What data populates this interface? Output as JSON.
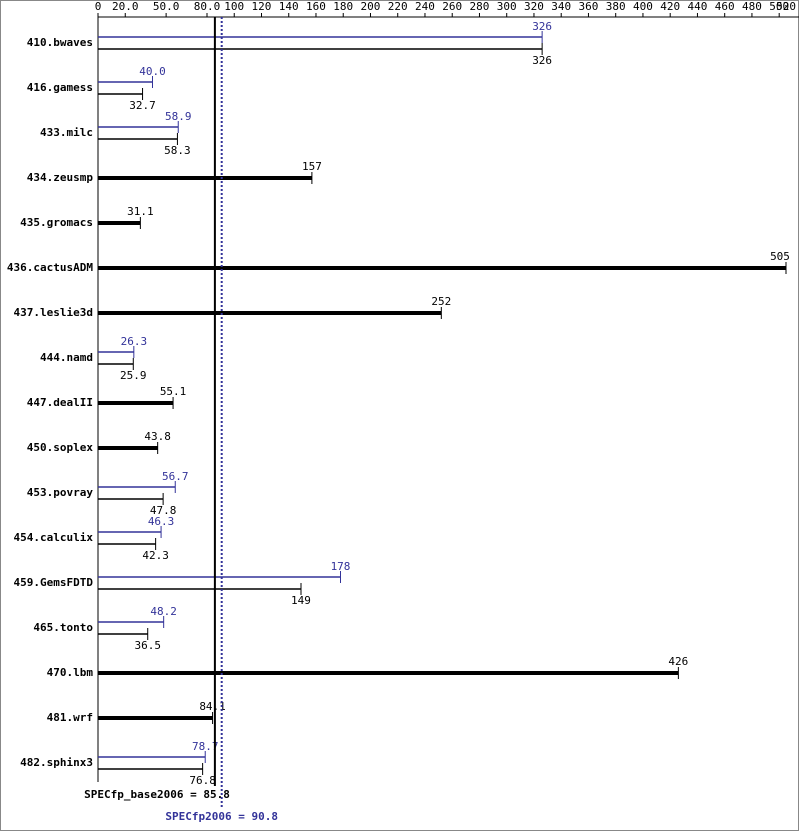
{
  "chart_data": {
    "type": "bar",
    "categories": [
      "410.bwaves",
      "416.gamess",
      "433.milc",
      "434.zeusmp",
      "435.gromacs",
      "436.cactusADM",
      "437.leslie3d",
      "444.namd",
      "447.dealII",
      "450.soplex",
      "453.povray",
      "454.calculix",
      "459.GemsFDTD",
      "465.tonto",
      "470.lbm",
      "481.wrf",
      "482.sphinx3"
    ],
    "series": [
      {
        "name": "peak",
        "color": "#333399",
        "values": [
          326,
          40.0,
          58.9,
          null,
          null,
          null,
          null,
          26.3,
          null,
          null,
          56.7,
          46.3,
          178,
          48.2,
          null,
          null,
          78.7
        ],
        "value_labels": [
          "326",
          "40.0",
          "58.9",
          null,
          null,
          null,
          null,
          "26.3",
          null,
          null,
          "56.7",
          "46.3",
          "178",
          "48.2",
          null,
          null,
          "78.7"
        ]
      },
      {
        "name": "base",
        "color": "#000000",
        "values": [
          326,
          32.7,
          58.3,
          157,
          31.1,
          505,
          252,
          25.9,
          55.1,
          43.8,
          47.8,
          42.3,
          149,
          36.5,
          426,
          84.1,
          76.8
        ],
        "value_labels": [
          "326",
          "32.7",
          "58.3",
          "157",
          "31.1",
          "505",
          "252",
          "25.9",
          "55.1",
          "43.8",
          "47.8",
          "42.3",
          "149",
          "36.5",
          "426",
          "84.1",
          "76.8"
        ]
      }
    ],
    "xlim": [
      0,
      520
    ],
    "xticks": [
      0,
      {
        "value": 20,
        "label": "20.0"
      },
      {
        "value": 50,
        "label": "50.0"
      },
      {
        "value": 80,
        "label": "80.0"
      },
      100,
      120,
      140,
      160,
      180,
      200,
      220,
      240,
      260,
      280,
      300,
      320,
      340,
      360,
      380,
      400,
      420,
      440,
      460,
      480,
      500,
      520
    ],
    "base_mean": {
      "label": "SPECfp_base2006 = ",
      "value": 85.8
    },
    "peak_mean": {
      "label": "SPECfp2006 = ",
      "value": 90.8
    }
  }
}
